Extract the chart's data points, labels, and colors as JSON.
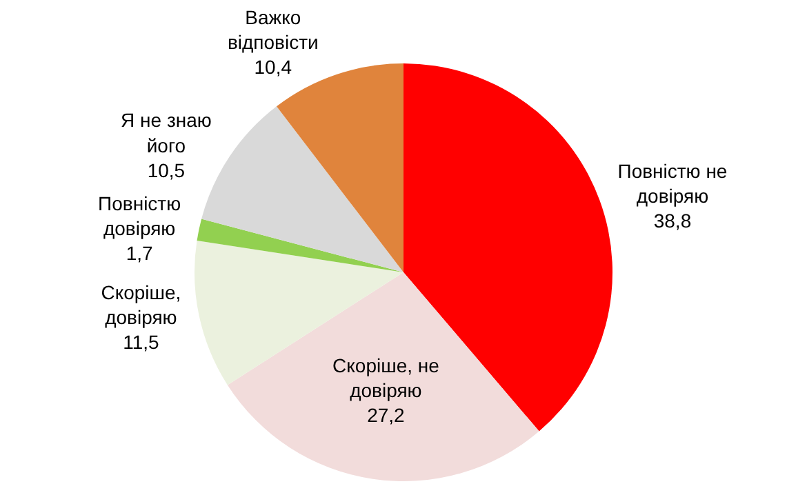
{
  "chart_data": {
    "type": "pie",
    "categories": [
      "Повністю не довіряю",
      "Скоріше, не довіряю",
      "Скоріше, довіряю",
      "Повністю довіряю",
      "Я не знаю його",
      "Важко відповісти"
    ],
    "values": [
      38.8,
      27.2,
      11.5,
      1.7,
      10.5,
      10.4
    ],
    "value_labels": [
      "38,8",
      "27,2",
      "11,5",
      "1,7",
      "10,5",
      "10,4"
    ],
    "colors": [
      "#ff0000",
      "#f2dcdb",
      "#ebf1de",
      "#92d050",
      "#d9d9d9",
      "#e0843c"
    ],
    "legend": false
  }
}
